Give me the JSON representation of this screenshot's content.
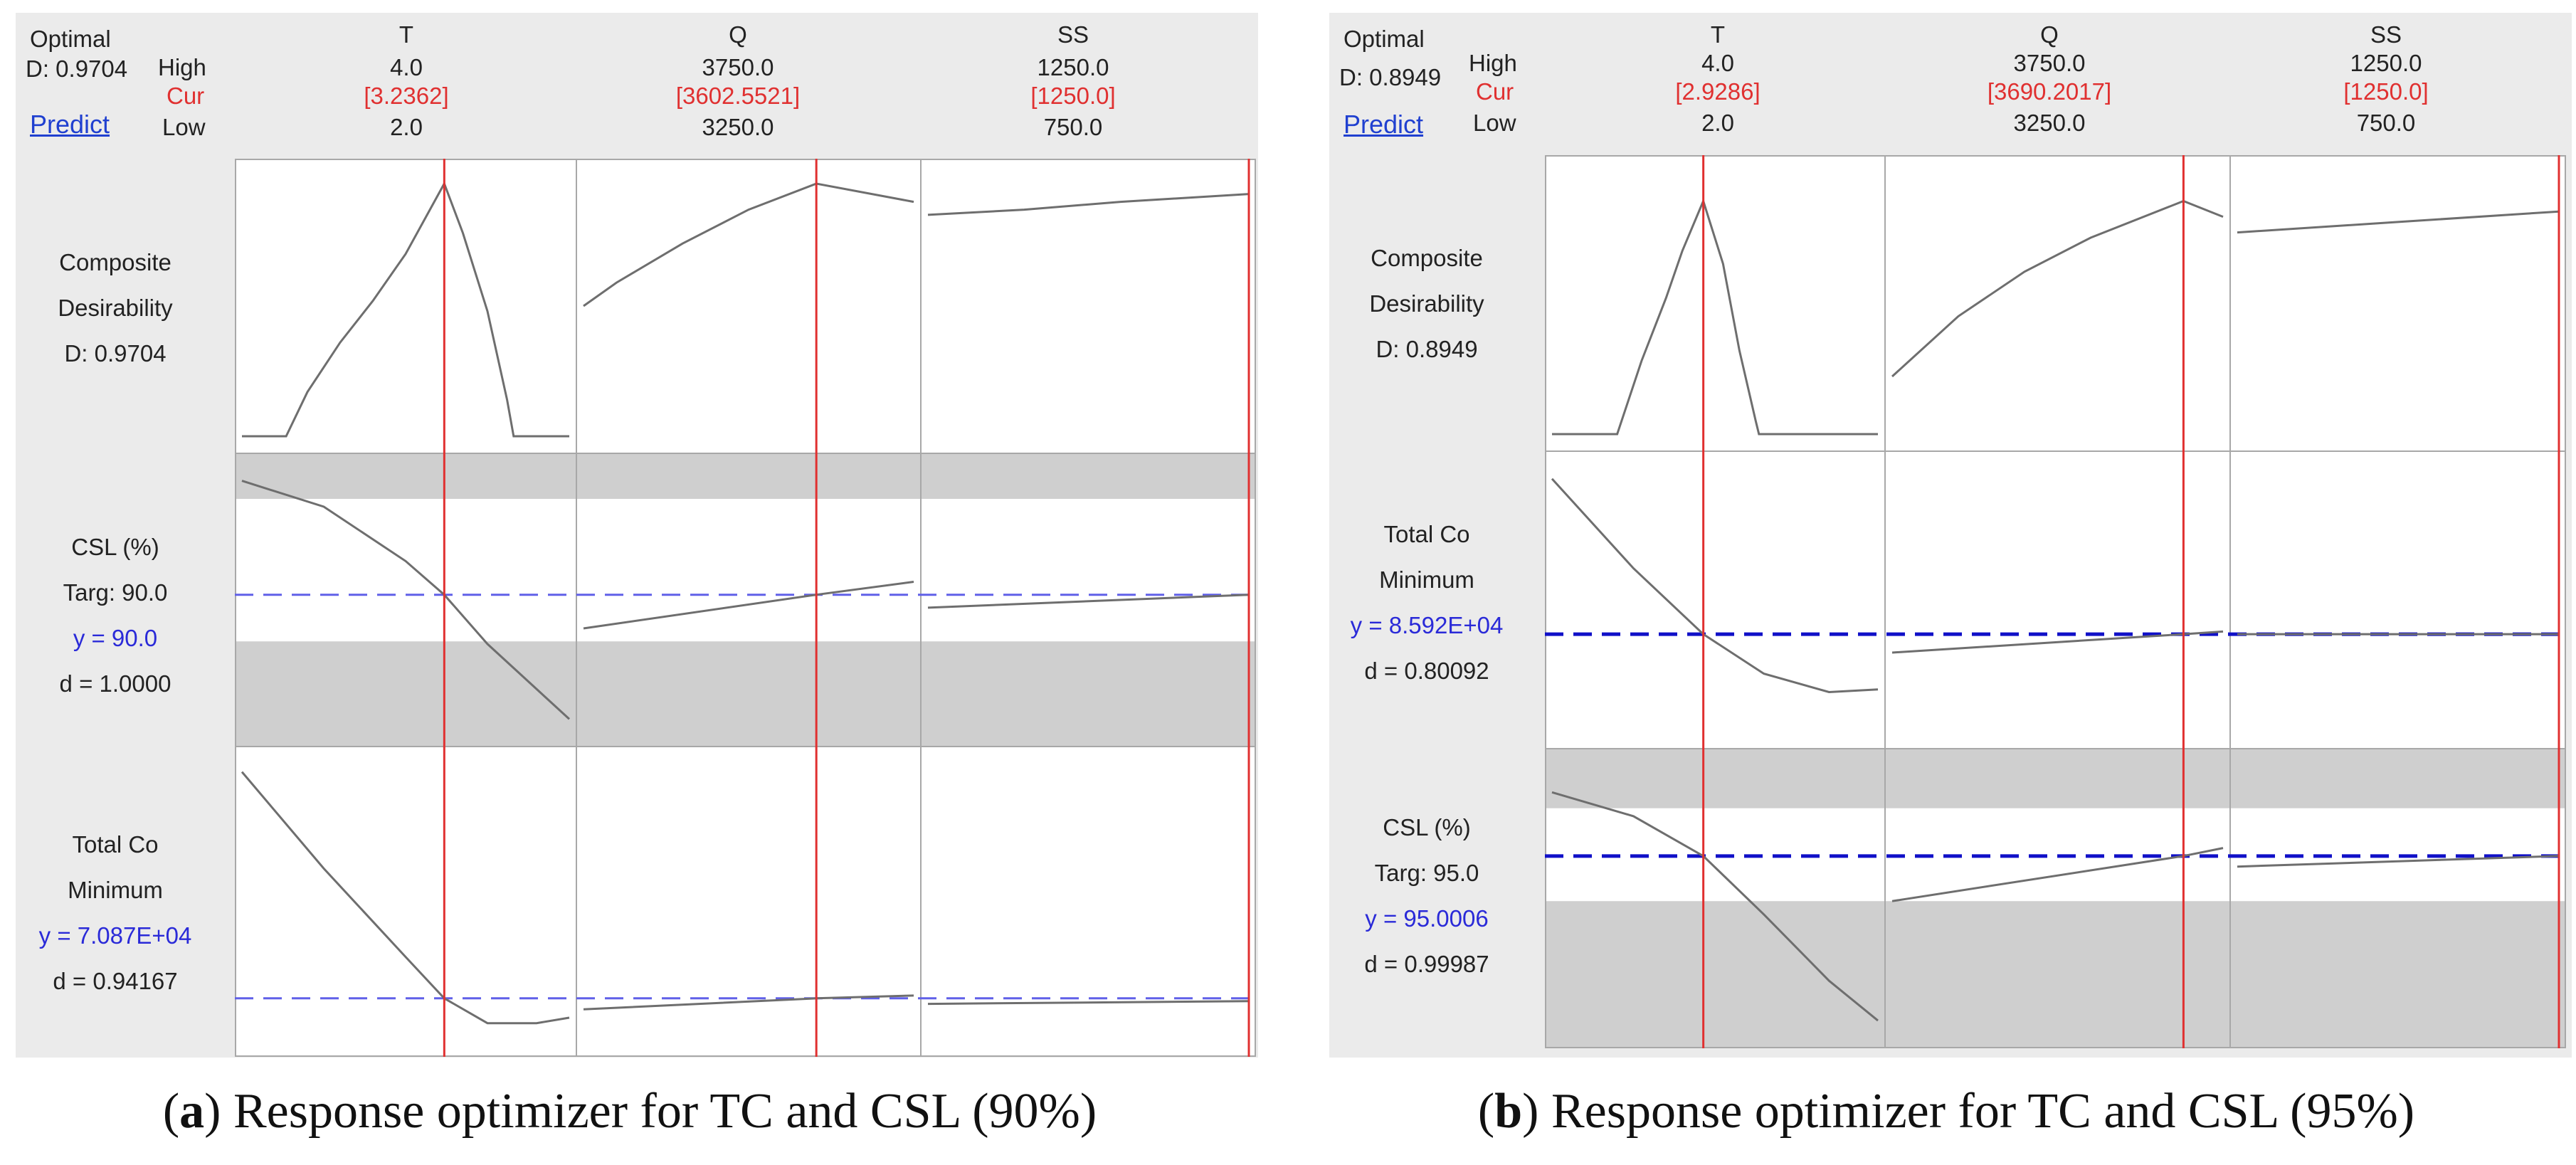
{
  "chart_data": [
    {
      "type": "line",
      "title": "Optimal",
      "subtitle": "Response optimizer for TC and CSL (90%)",
      "panel_label": "a",
      "optimal_d": "D: 0.9704",
      "predict_label": "Predict",
      "row_labels": {
        "high": "High",
        "cur": "Cur",
        "low": "Low"
      },
      "factors": [
        {
          "name": "T",
          "high": "4.0",
          "cur": "[3.2362]",
          "low": "2.0",
          "range": [
            2.0,
            4.0
          ],
          "cur_value": 3.2362
        },
        {
          "name": "Q",
          "high": "3750.0",
          "cur": "[3602.5521]",
          "low": "3250.0",
          "range": [
            3250.0,
            3750.0
          ],
          "cur_value": 3602.5521
        },
        {
          "name": "SS",
          "high": "1250.0",
          "cur": "[1250.0]",
          "low": "750.0",
          "range": [
            750.0,
            1250.0
          ],
          "cur_value": 1250.0
        }
      ],
      "responses": [
        {
          "key": "composite",
          "lines": [
            "Composite",
            "Desirability",
            "D: 0.9704"
          ],
          "blue_line": -1,
          "ylim": [
            0,
            1
          ],
          "target": null,
          "shaded": [],
          "series": [
            {
              "x": [
                2.0,
                2.27,
                2.4,
                2.6,
                2.8,
                3.0,
                3.2362,
                3.35,
                3.5,
                3.62,
                3.66,
                4.0
              ],
              "y": [
                0.0,
                0.0,
                0.17,
                0.36,
                0.52,
                0.7,
                0.97,
                0.78,
                0.48,
                0.14,
                0.0,
                0.0
              ]
            },
            {
              "x": [
                3250,
                3300,
                3400,
                3500,
                3602.5521,
                3750
              ],
              "y": [
                0.5,
                0.59,
                0.74,
                0.87,
                0.97,
                0.9
              ]
            },
            {
              "x": [
                750,
                900,
                1050,
                1250
              ],
              "y": [
                0.85,
                0.87,
                0.9,
                0.93
              ]
            }
          ]
        },
        {
          "key": "csl",
          "lines": [
            "CSL (%)",
            "Targ: 90.0",
            "y = 90.0",
            "d = 1.0000"
          ],
          "blue_line": 2,
          "ylim": [
            0,
            1
          ],
          "target": 0.52,
          "shaded": [
            [
              0.0,
              0.34
            ],
            [
              0.89,
              1.0
            ]
          ],
          "series": [
            {
              "x": [
                2.0,
                2.5,
                3.0,
                3.2362,
                3.5,
                4.0
              ],
              "y": [
                0.96,
                0.86,
                0.65,
                0.52,
                0.33,
                0.04
              ]
            },
            {
              "x": [
                3250,
                3602.5521,
                3750
              ],
              "y": [
                0.39,
                0.52,
                0.57
              ]
            },
            {
              "x": [
                750,
                1250
              ],
              "y": [
                0.47,
                0.52
              ]
            }
          ]
        },
        {
          "key": "totalco",
          "lines": [
            "Total Co",
            "Minimum",
            "y = 7.087E+04",
            "d = 0.94167"
          ],
          "blue_line": 2,
          "ylim": [
            0,
            1
          ],
          "target": 0.15,
          "shaded": [],
          "series": [
            {
              "x": [
                2.0,
                2.5,
                3.0,
                3.2362,
                3.5,
                3.8,
                4.0
              ],
              "y": [
                0.97,
                0.62,
                0.3,
                0.15,
                0.06,
                0.06,
                0.08
              ]
            },
            {
              "x": [
                3250,
                3602.5521,
                3750
              ],
              "y": [
                0.11,
                0.15,
                0.16
              ]
            },
            {
              "x": [
                750,
                1250
              ],
              "y": [
                0.13,
                0.14
              ]
            }
          ]
        }
      ]
    },
    {
      "type": "line",
      "title": "Optimal",
      "subtitle": "Response optimizer for TC and CSL (95%)",
      "panel_label": "b",
      "optimal_d": "D: 0.8949",
      "predict_label": "Predict",
      "row_labels": {
        "high": "High",
        "cur": "Cur",
        "low": "Low"
      },
      "factors": [
        {
          "name": "T",
          "high": "4.0",
          "cur": "[2.9286]",
          "low": "2.0",
          "range": [
            2.0,
            4.0
          ],
          "cur_value": 2.9286
        },
        {
          "name": "Q",
          "high": "3750.0",
          "cur": "[3690.2017]",
          "low": "3250.0",
          "range": [
            3250.0,
            3750.0
          ],
          "cur_value": 3690.2017
        },
        {
          "name": "SS",
          "high": "1250.0",
          "cur": "[1250.0]",
          "low": "750.0",
          "range": [
            750.0,
            1250.0
          ],
          "cur_value": 1250.0
        }
      ],
      "responses": [
        {
          "key": "composite",
          "lines": [
            "Composite",
            "Desirability",
            "D: 0.8949"
          ],
          "blue_line": -1,
          "ylim": [
            0,
            1
          ],
          "target": null,
          "shaded": [],
          "series": [
            {
              "x": [
                2.0,
                2.4,
                2.55,
                2.7,
                2.8,
                2.9286,
                3.05,
                3.15,
                3.25,
                3.27,
                4.0
              ],
              "y": [
                0.0,
                0.0,
                0.28,
                0.52,
                0.7,
                0.89,
                0.65,
                0.32,
                0.05,
                0.0,
                0.0
              ]
            },
            {
              "x": [
                3250,
                3350,
                3450,
                3550,
                3690.2017,
                3750
              ],
              "y": [
                0.22,
                0.45,
                0.62,
                0.75,
                0.89,
                0.83
              ]
            },
            {
              "x": [
                750,
                1000,
                1250
              ],
              "y": [
                0.77,
                0.81,
                0.85
              ]
            }
          ]
        },
        {
          "key": "totalco",
          "lines": [
            "Total Co",
            "Minimum",
            "y = 8.592E+04",
            "d = 0.80092"
          ],
          "blue_line": 2,
          "ylim": [
            0,
            1
          ],
          "target": 0.37,
          "shaded": [],
          "series": [
            {
              "x": [
                2.0,
                2.5,
                2.9286,
                3.3,
                3.7,
                4.0
              ],
              "y": [
                0.96,
                0.62,
                0.37,
                0.22,
                0.15,
                0.16
              ]
            },
            {
              "x": [
                3250,
                3690.2017,
                3750
              ],
              "y": [
                0.3,
                0.37,
                0.38
              ]
            },
            {
              "x": [
                750,
                1250
              ],
              "y": [
                0.37,
                0.37
              ]
            }
          ]
        },
        {
          "key": "csl",
          "lines": [
            "CSL (%)",
            "Targ: 95.0",
            "y = 95.0006",
            "d = 0.99987"
          ],
          "blue_line": 2,
          "ylim": [
            0,
            1
          ],
          "target": 0.66,
          "shaded": [
            [
              0.0,
              0.49
            ],
            [
              0.84,
              1.0
            ]
          ],
          "series": [
            {
              "x": [
                2.0,
                2.5,
                2.9286,
                3.3,
                3.7,
                4.0
              ],
              "y": [
                0.9,
                0.81,
                0.66,
                0.44,
                0.19,
                0.04
              ]
            },
            {
              "x": [
                3250,
                3690.2017,
                3750
              ],
              "y": [
                0.49,
                0.66,
                0.69
              ]
            },
            {
              "x": [
                750,
                1250
              ],
              "y": [
                0.62,
                0.66
              ]
            }
          ]
        }
      ]
    }
  ],
  "style": {
    "panel_bg": "#ebebeb",
    "plot_bg": "#ffffff",
    "shade": "#cfcfcf",
    "curve": "#6e6e6e",
    "grid": "#a8a8a8",
    "cur_line": "#e03030",
    "target_line_a": "#6060e8",
    "target_line_b": "#1010c8"
  }
}
